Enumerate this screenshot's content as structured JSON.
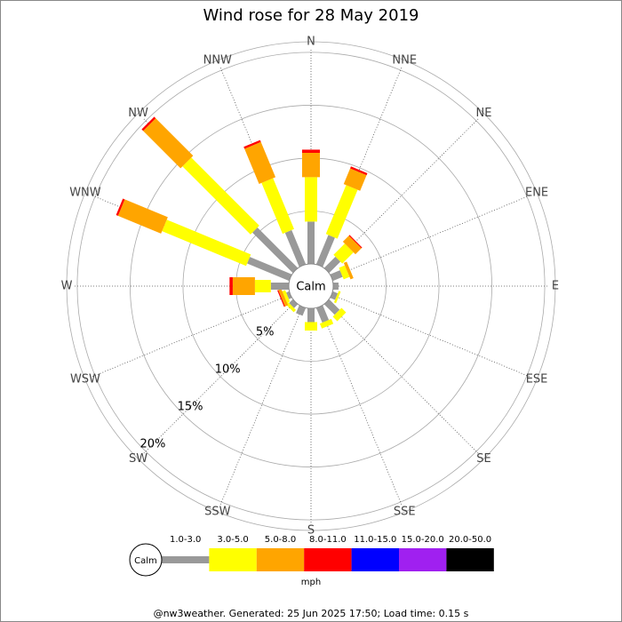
{
  "chart_data": {
    "type": "wind_rose",
    "title": "Wind rose for 28 May 2019",
    "directions": [
      "N",
      "NNE",
      "NE",
      "ENE",
      "E",
      "ESE",
      "SE",
      "SSE",
      "S",
      "SSW",
      "SW",
      "WSW",
      "W",
      "WNW",
      "NW",
      "NNW"
    ],
    "calm_label": "Calm",
    "unit": "mph",
    "ylim": [
      0,
      21
    ],
    "yticks": [
      {
        "value": 5,
        "label": "5%"
      },
      {
        "value": 10,
        "label": "10%"
      },
      {
        "value": 15,
        "label": "15%"
      },
      {
        "value": 20,
        "label": "20%"
      }
    ],
    "series": [
      {
        "name": "1.0-3.0",
        "color": "#999999",
        "values": [
          4.0,
          3.0,
          1.5,
          1.0,
          0.5,
          0.5,
          1.4,
          1.5,
          1.3,
          0.8,
          0.5,
          0.3,
          1.7,
          4.3,
          5.4,
          3.5
        ]
      },
      {
        "name": "3.0-5.0",
        "color": "#ffff00",
        "values": [
          4.2,
          5.0,
          1.5,
          0.6,
          0,
          0.2,
          0.6,
          0.5,
          0.8,
          0,
          0.3,
          0.3,
          1.5,
          8.6,
          9.1,
          5.2
        ]
      },
      {
        "name": "5.0-8.0",
        "color": "#ffa500",
        "values": [
          2.3,
          1.6,
          0.8,
          0.3,
          0,
          0,
          0,
          0,
          0,
          0,
          0,
          0.3,
          2.1,
          4.4,
          5.0,
          3.6
        ]
      },
      {
        "name": "8.0-11.0",
        "color": "#ff0000",
        "values": [
          0.3,
          0.2,
          0.1,
          0,
          0,
          0,
          0,
          0,
          0,
          0,
          0,
          0.1,
          0.3,
          0.2,
          0.2,
          0.2
        ]
      },
      {
        "name": "11.0-15.0",
        "color": "#0000ff",
        "values": [
          0,
          0,
          0,
          0,
          0,
          0,
          0,
          0,
          0,
          0,
          0,
          0,
          0,
          0,
          0,
          0
        ]
      },
      {
        "name": "15.0-20.0",
        "color": "#a020f0",
        "values": [
          0,
          0,
          0,
          0,
          0,
          0,
          0,
          0,
          0,
          0,
          0,
          0,
          0,
          0,
          0,
          0
        ]
      },
      {
        "name": "20.0-50.0",
        "color": "#000000",
        "values": [
          0,
          0,
          0,
          0,
          0,
          0,
          0,
          0,
          0,
          0,
          0,
          0,
          0,
          0,
          0,
          0
        ]
      }
    ],
    "footer": "@nw3weather. Generated: 25 Jun 2025 17:50; Load time: 0.15 s"
  }
}
